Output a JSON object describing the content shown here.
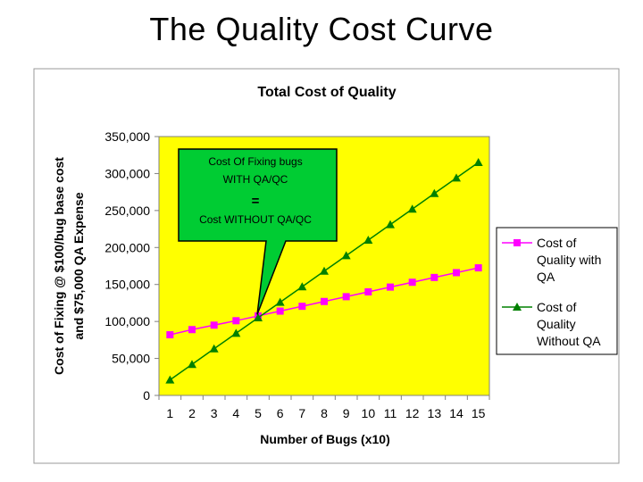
{
  "slide": {
    "title": "The Quality Cost Curve"
  },
  "colors": {
    "plot_background": "#FFFF00",
    "series_with_qa": "#FF00FF",
    "series_without_qa": "#008000",
    "callout_fill": "#00CC33"
  },
  "callout": {
    "line1": "Cost  Of Fixing bugs",
    "line2": "WITH QA/QC",
    "equals": "=",
    "line3": "Cost WITHOUT QA/QC"
  },
  "chart_data": {
    "type": "line",
    "title": "Total Cost of Quality",
    "xlabel": "Number of Bugs (x10)",
    "ylabel_line1": "Cost of Fixing @ $100/bug base cost",
    "ylabel_line2": "and $75,000 QA Expense",
    "ylim": [
      0,
      350000
    ],
    "y_ticks": [
      0,
      50000,
      100000,
      150000,
      200000,
      250000,
      300000,
      350000
    ],
    "y_tick_labels": [
      "0",
      "50,000",
      "100,000",
      "150,000",
      "200,000",
      "250,000",
      "300,000",
      "350,000"
    ],
    "x": [
      1,
      2,
      3,
      4,
      5,
      6,
      7,
      8,
      9,
      10,
      11,
      12,
      13,
      14,
      15
    ],
    "x_tick_labels": [
      "1",
      "2",
      "3",
      "4",
      "5",
      "6",
      "7",
      "8",
      "9",
      "10",
      "11",
      "12",
      "13",
      "14",
      "15"
    ],
    "grid": false,
    "legend_position": "right",
    "series": [
      {
        "name": "Cost of Quality with QA",
        "legend_lines": [
          "Cost of",
          "Quality with",
          "QA"
        ],
        "marker": "square",
        "values": [
          82000,
          89000,
          95000,
          101000,
          107500,
          114000,
          120500,
          127000,
          133500,
          140000,
          146500,
          153000,
          159500,
          166000,
          172500
        ]
      },
      {
        "name": "Cost of Quality Without QA",
        "legend_lines": [
          "Cost of",
          "Quality",
          "Without QA"
        ],
        "marker": "triangle",
        "values": [
          21000,
          42000,
          63000,
          84000,
          105000,
          126000,
          147000,
          168000,
          189000,
          210000,
          231000,
          252000,
          273000,
          294000,
          315000
        ]
      }
    ]
  }
}
